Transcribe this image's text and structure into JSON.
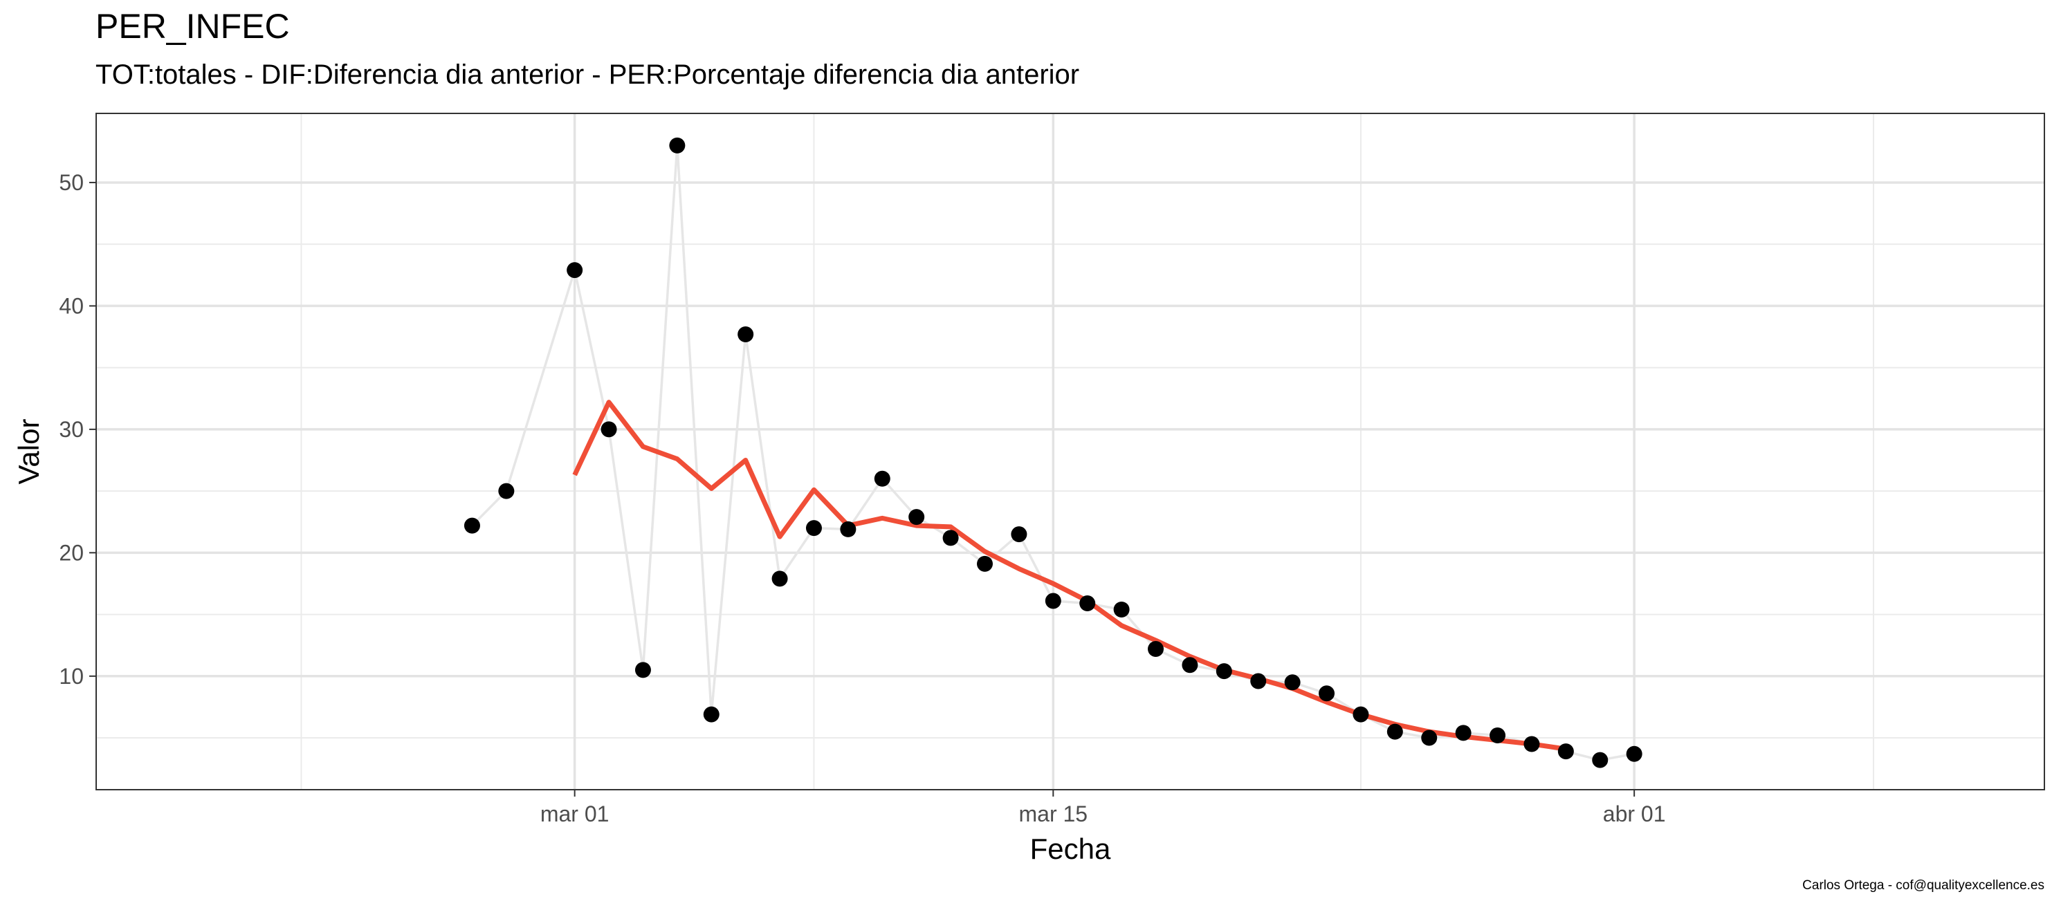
{
  "chart_data": {
    "type": "line",
    "title": "PER_INFEC",
    "subtitle": "TOT:totales - DIF:Diferencia dia anterior - PER:Porcentaje diferencia dia anterior",
    "xlabel": "Fecha",
    "ylabel": "Valor",
    "caption": "Carlos Ortega - cof@qualityexcellence.es",
    "x_ticks": [
      {
        "date": "2020-03-01",
        "label": "mar 01"
      },
      {
        "date": "2020-03-15",
        "label": "mar 15"
      },
      {
        "date": "2020-04-01",
        "label": "abr 01"
      }
    ],
    "x_minor_ticks": [
      "2020-02-22",
      "2020-03-08",
      "2020-03-24",
      "2020-04-08"
    ],
    "xlim": [
      "2020-02-16",
      "2020-04-13"
    ],
    "y_ticks": [
      10,
      20,
      30,
      40,
      50
    ],
    "y_minor_ticks": [
      5,
      15,
      25,
      35,
      45
    ],
    "ylim": [
      0.8,
      55.6
    ],
    "grid": true,
    "series": [
      {
        "type": "line-points",
        "color": "#000000",
        "line_color": "#e6e6e6",
        "x": [
          "2020-02-27",
          "2020-02-28",
          "2020-03-01",
          "2020-03-02",
          "2020-03-03",
          "2020-03-04",
          "2020-03-05",
          "2020-03-06",
          "2020-03-07",
          "2020-03-08",
          "2020-03-09",
          "2020-03-10",
          "2020-03-11",
          "2020-03-12",
          "2020-03-13",
          "2020-03-14",
          "2020-03-15",
          "2020-03-16",
          "2020-03-17",
          "2020-03-18",
          "2020-03-19",
          "2020-03-20",
          "2020-03-21",
          "2020-03-22",
          "2020-03-23",
          "2020-03-24",
          "2020-03-25",
          "2020-03-26",
          "2020-03-27",
          "2020-03-28",
          "2020-03-29",
          "2020-03-30",
          "2020-03-31",
          "2020-04-01"
        ],
        "y": [
          22.2,
          25.0,
          42.9,
          30.0,
          10.5,
          53.0,
          6.9,
          37.7,
          17.9,
          22.0,
          21.9,
          26.0,
          22.9,
          21.2,
          19.1,
          21.5,
          16.1,
          15.9,
          15.4,
          12.2,
          10.9,
          10.4,
          9.6,
          9.5,
          8.6,
          6.9,
          5.5,
          5.0,
          5.4,
          5.2,
          4.5,
          3.9,
          3.2,
          3.7
        ]
      },
      {
        "type": "line",
        "color": "#f04e37",
        "x": [
          "2020-03-01",
          "2020-03-02",
          "2020-03-03",
          "2020-03-04",
          "2020-03-05",
          "2020-03-06",
          "2020-03-07",
          "2020-03-08",
          "2020-03-09",
          "2020-03-10",
          "2020-03-11",
          "2020-03-12",
          "2020-03-13",
          "2020-03-14",
          "2020-03-15",
          "2020-03-16",
          "2020-03-17",
          "2020-03-18",
          "2020-03-19",
          "2020-03-20",
          "2020-03-21",
          "2020-03-22",
          "2020-03-23",
          "2020-03-24",
          "2020-03-25",
          "2020-03-26",
          "2020-03-27",
          "2020-03-28",
          "2020-03-29",
          "2020-03-30"
        ],
        "y": [
          26.3,
          32.2,
          28.6,
          27.6,
          25.2,
          27.5,
          21.3,
          25.1,
          22.2,
          22.8,
          22.2,
          22.1,
          20.1,
          18.7,
          17.5,
          16.1,
          14.1,
          12.9,
          11.6,
          10.5,
          9.8,
          9.0,
          7.9,
          6.9,
          6.1,
          5.5,
          5.1,
          4.8,
          4.5,
          4.1
        ]
      }
    ]
  }
}
